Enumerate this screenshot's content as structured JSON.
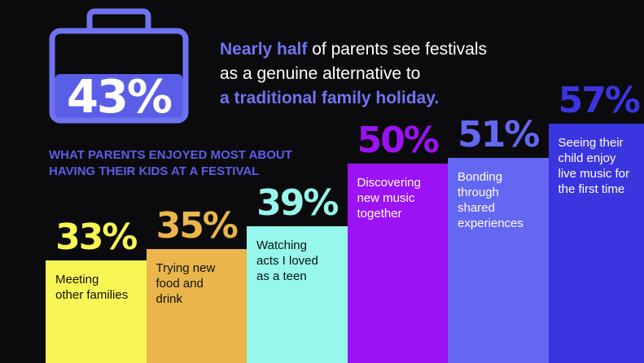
{
  "headline": {
    "highlight_1": "Nearly half",
    "line_1_rest": " of parents see festivals",
    "line_2": "as a genuine alternative to",
    "highlight_2": "a traditional family holiday."
  },
  "bag_stat": "43%",
  "section_title": "WHAT PARENTS ENJOYED MOST ABOUT HAVING THEIR KIDS AT A FESTIVAL",
  "colors": {
    "accent": "#6f72f0",
    "bag_fill": "#5a5ee6",
    "background": "#0b0b0d"
  },
  "chart_data": {
    "type": "bar",
    "categories": [
      "Meeting other families",
      "Trying new food and drink",
      "Watching acts I loved as a teen",
      "Discovering new music together",
      "Bonding through shared experiences",
      "Seeing their child enjoy live music for the first time"
    ],
    "values": [
      33,
      35,
      39,
      50,
      51,
      57
    ],
    "value_labels": [
      "33%",
      "35%",
      "39%",
      "50%",
      "51%",
      "57%"
    ],
    "bar_colors": [
      "#f8f654",
      "#eab54a",
      "#96f7ec",
      "#9b12f4",
      "#6467f1",
      "#3a35df"
    ],
    "pct_colors": [
      "#f8f654",
      "#eab54a",
      "#96f7ec",
      "#9b12f4",
      "#6467f1",
      "#3a35df"
    ],
    "label_colors": [
      "#111111",
      "#111111",
      "#111111",
      "#ffffff",
      "#ffffff",
      "#ffffff"
    ],
    "label_lines": [
      [
        "Meeting",
        "other families"
      ],
      [
        "Trying new",
        "food and",
        "drink"
      ],
      [
        "Watching",
        "acts I loved",
        "as a teen"
      ],
      [
        "Discovering",
        "new music",
        "together"
      ],
      [
        "Bonding",
        "through",
        "shared",
        "experiences"
      ],
      [
        "Seeing their",
        "child enjoy",
        "live music for",
        "the first time"
      ]
    ]
  }
}
